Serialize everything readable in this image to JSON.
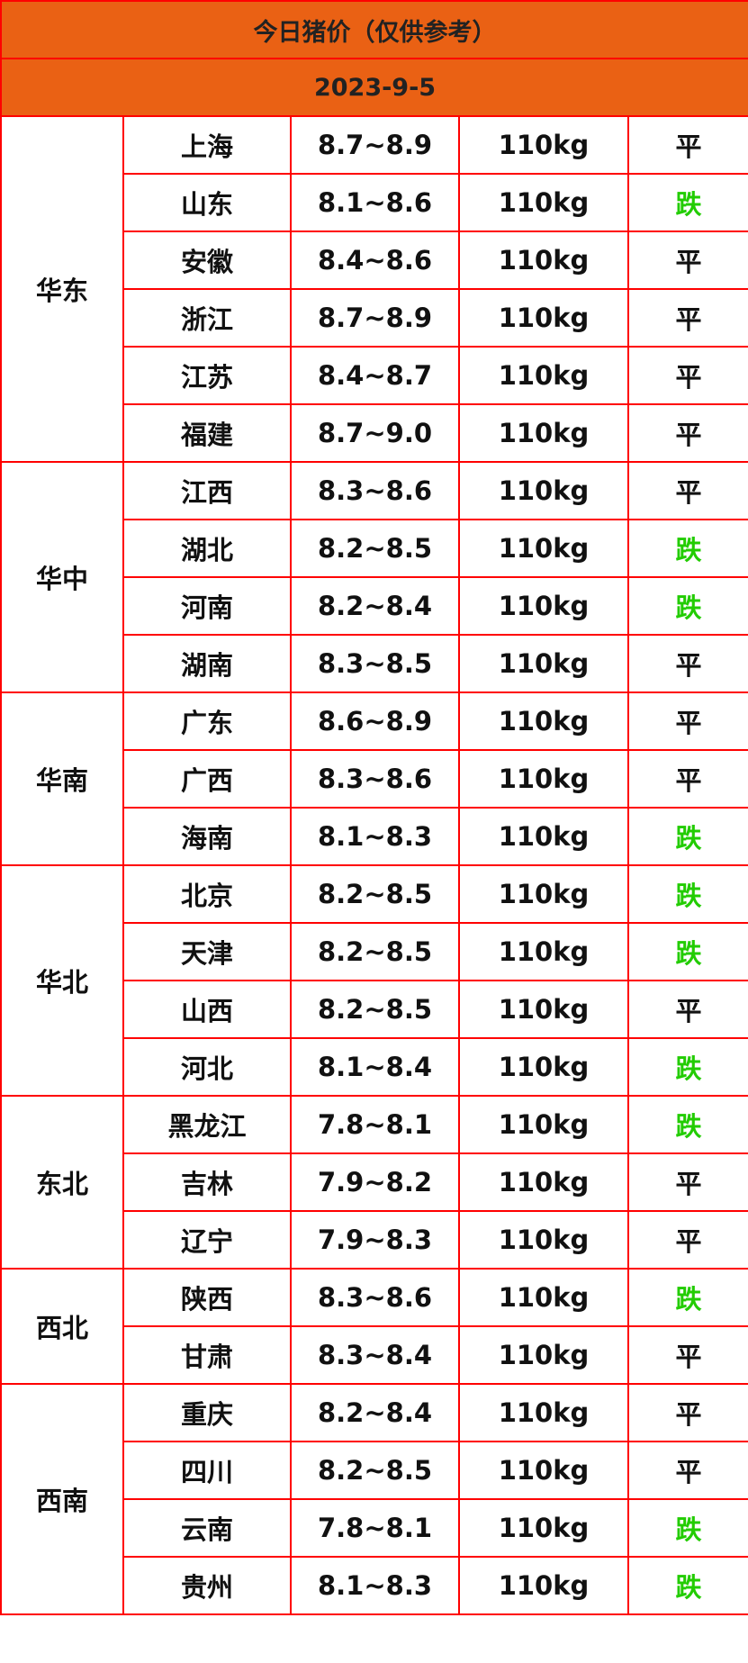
{
  "title": "今日猪价（仅供参考）",
  "date": "2023-9-5",
  "colors": {
    "header_bg": "#ea6114",
    "border": "#ff0000",
    "down": "#22cc00",
    "flat": "#111111"
  },
  "regions": [
    {
      "name": "华东",
      "rows": [
        {
          "province": "上海",
          "price": "8.7~8.9",
          "weight": "110kg",
          "trend": "平"
        },
        {
          "province": "山东",
          "price": "8.1~8.6",
          "weight": "110kg",
          "trend": "跌"
        },
        {
          "province": "安徽",
          "price": "8.4~8.6",
          "weight": "110kg",
          "trend": "平"
        },
        {
          "province": "浙江",
          "price": "8.7~8.9",
          "weight": "110kg",
          "trend": "平"
        },
        {
          "province": "江苏",
          "price": "8.4~8.7",
          "weight": "110kg",
          "trend": "平"
        },
        {
          "province": "福建",
          "price": "8.7~9.0",
          "weight": "110kg",
          "trend": "平"
        }
      ]
    },
    {
      "name": "华中",
      "rows": [
        {
          "province": "江西",
          "price": "8.3~8.6",
          "weight": "110kg",
          "trend": "平"
        },
        {
          "province": "湖北",
          "price": "8.2~8.5",
          "weight": "110kg",
          "trend": "跌"
        },
        {
          "province": "河南",
          "price": "8.2~8.4",
          "weight": "110kg",
          "trend": "跌"
        },
        {
          "province": "湖南",
          "price": "8.3~8.5",
          "weight": "110kg",
          "trend": "平"
        }
      ]
    },
    {
      "name": "华南",
      "rows": [
        {
          "province": "广东",
          "price": "8.6~8.9",
          "weight": "110kg",
          "trend": "平"
        },
        {
          "province": "广西",
          "price": "8.3~8.6",
          "weight": "110kg",
          "trend": "平"
        },
        {
          "province": "海南",
          "price": "8.1~8.3",
          "weight": "110kg",
          "trend": "跌"
        }
      ]
    },
    {
      "name": "华北",
      "rows": [
        {
          "province": "北京",
          "price": "8.2~8.5",
          "weight": "110kg",
          "trend": "跌"
        },
        {
          "province": "天津",
          "price": "8.2~8.5",
          "weight": "110kg",
          "trend": "跌"
        },
        {
          "province": "山西",
          "price": "8.2~8.5",
          "weight": "110kg",
          "trend": "平"
        },
        {
          "province": "河北",
          "price": "8.1~8.4",
          "weight": "110kg",
          "trend": "跌"
        }
      ]
    },
    {
      "name": "东北",
      "rows": [
        {
          "province": "黑龙江",
          "price": "7.8~8.1",
          "weight": "110kg",
          "trend": "跌"
        },
        {
          "province": "吉林",
          "price": "7.9~8.2",
          "weight": "110kg",
          "trend": "平"
        },
        {
          "province": "辽宁",
          "price": "7.9~8.3",
          "weight": "110kg",
          "trend": "平"
        }
      ]
    },
    {
      "name": "西北",
      "rows": [
        {
          "province": "陕西",
          "price": "8.3~8.6",
          "weight": "110kg",
          "trend": "跌"
        },
        {
          "province": "甘肃",
          "price": "8.3~8.4",
          "weight": "110kg",
          "trend": "平"
        }
      ]
    },
    {
      "name": "西南",
      "rows": [
        {
          "province": "重庆",
          "price": "8.2~8.4",
          "weight": "110kg",
          "trend": "平"
        },
        {
          "province": "四川",
          "price": "8.2~8.5",
          "weight": "110kg",
          "trend": "平"
        },
        {
          "province": "云南",
          "price": "7.8~8.1",
          "weight": "110kg",
          "trend": "跌"
        },
        {
          "province": "贵州",
          "price": "8.1~8.3",
          "weight": "110kg",
          "trend": "跌"
        }
      ]
    }
  ]
}
